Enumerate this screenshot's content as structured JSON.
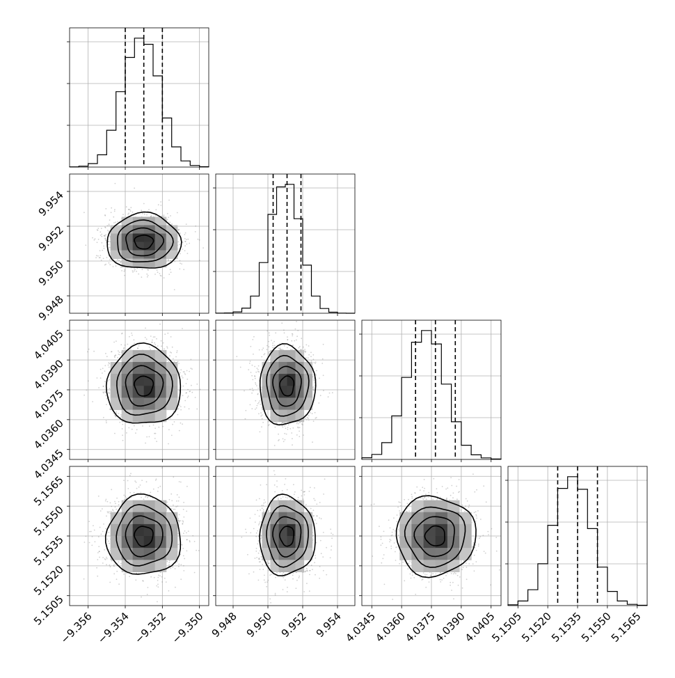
{
  "chart_data": {
    "type": "corner",
    "grid": true,
    "params": [
      {
        "range": [
          -9.357,
          -9.3495
        ],
        "ticks": [
          -9.356,
          -9.354,
          -9.352,
          -9.35
        ],
        "tick_labels": [
          "−9.356",
          "−9.354",
          "−9.352",
          "−9.350"
        ],
        "quantiles": [
          -9.354,
          -9.353,
          -9.352
        ],
        "center": -9.353,
        "spread": 0.001
      },
      {
        "range": [
          9.947,
          9.955
        ],
        "ticks": [
          9.948,
          9.95,
          9.952,
          9.954
        ],
        "tick_labels": [
          "9.948",
          "9.950",
          "9.952",
          "9.954"
        ],
        "quantiles": [
          9.9503,
          9.9511,
          9.9519
        ],
        "center": 9.9511,
        "spread": 0.0008
      },
      {
        "range": [
          4.034,
          4.041
        ],
        "ticks": [
          4.0345,
          4.036,
          4.0375,
          4.039,
          4.0405
        ],
        "tick_labels": [
          "4.0345",
          "4.0360",
          "4.0375",
          "4.0390",
          "4.0405"
        ],
        "quantiles": [
          4.0367,
          4.0377,
          4.0387
        ],
        "center": 4.0377,
        "spread": 0.001
      },
      {
        "range": [
          5.15,
          5.157
        ],
        "ticks": [
          5.1505,
          5.152,
          5.1535,
          5.155,
          5.1565
        ],
        "tick_labels": [
          "5.1505",
          "5.1520",
          "5.1535",
          "5.1550",
          "5.1565"
        ],
        "quantiles": [
          5.1525,
          5.1535,
          5.1545
        ],
        "center": 5.1535,
        "spread": 0.001
      }
    ],
    "histograms": [
      {
        "param": 0,
        "edges": [
          -9.357,
          -9.3565,
          -9.356,
          -9.3555,
          -9.355,
          -9.3545,
          -9.354,
          -9.3535,
          -9.353,
          -9.3525,
          -9.352,
          -9.3515,
          -9.351,
          -9.3505,
          -9.35,
          -9.3495
        ],
        "counts": [
          2,
          10,
          40,
          140,
          420,
          860,
          1250,
          1470,
          1400,
          1040,
          560,
          230,
          70,
          18,
          4
        ]
      },
      {
        "param": 1,
        "edges": [
          9.947,
          9.9475,
          9.948,
          9.9485,
          9.949,
          9.9495,
          9.95,
          9.9505,
          9.951,
          9.9515,
          9.952,
          9.9525,
          9.953,
          9.9535,
          9.954,
          9.9545,
          9.955
        ],
        "counts": [
          1,
          3,
          15,
          60,
          200,
          590,
          1150,
          1470,
          1500,
          1100,
          560,
          200,
          55,
          12,
          2,
          0
        ]
      },
      {
        "param": 2,
        "edges": [
          4.034,
          4.0345,
          4.035,
          4.0355,
          4.036,
          4.0365,
          4.037,
          4.0375,
          4.038,
          4.0385,
          4.039,
          4.0395,
          4.04,
          4.0405,
          4.041
        ],
        "counts": [
          20,
          60,
          200,
          520,
          980,
          1400,
          1540,
          1380,
          900,
          450,
          170,
          55,
          18,
          5
        ]
      },
      {
        "param": 3,
        "edges": [
          5.15,
          5.1505,
          5.151,
          5.1515,
          5.152,
          5.1525,
          5.153,
          5.1535,
          5.154,
          5.1545,
          5.155,
          5.1555,
          5.156,
          5.1565,
          5.157
        ],
        "counts": [
          10,
          55,
          190,
          500,
          960,
          1400,
          1540,
          1390,
          920,
          460,
          170,
          55,
          15,
          4
        ]
      }
    ],
    "contour_levels": [
      0.118,
      0.393,
      0.675,
      0.865
    ]
  }
}
